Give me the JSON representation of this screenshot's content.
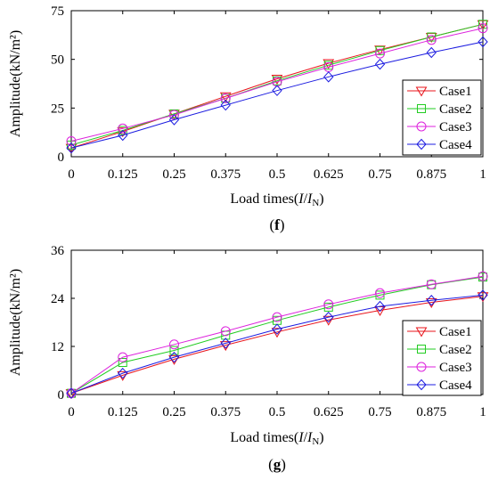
{
  "chart_data": [
    {
      "type": "line",
      "panel": "f",
      "xlabel_prefix": "Load times(",
      "xlabel_italic": "I",
      "xlabel_sep": "/",
      "xlabel_italic2": "I",
      "xlabel_sub": "N",
      "xlabel_suffix": ")",
      "ylabel": "Amplitude(kN/m²)",
      "x": [
        0,
        0.125,
        0.25,
        0.375,
        0.5,
        0.625,
        0.75,
        0.875,
        1
      ],
      "x_ticks": [
        "0",
        "0.125",
        "0.25",
        "0.375",
        "0.5",
        "0.625",
        "0.75",
        "0.875",
        "1"
      ],
      "ylim": [
        0,
        75
      ],
      "y_ticks": [
        0,
        25,
        50,
        75
      ],
      "legend_position": "bottom-right",
      "series": [
        {
          "name": "Case1",
          "color": "#e8141b",
          "marker": "triangle-down",
          "values": [
            4.5,
            13,
            22,
            31,
            40,
            48,
            55,
            61.5,
            68
          ]
        },
        {
          "name": "Case2",
          "color": "#22cc22",
          "marker": "square",
          "values": [
            6,
            13.5,
            22,
            30,
            39,
            47,
            54.5,
            61.5,
            68
          ]
        },
        {
          "name": "Case3",
          "color": "#dd22dd",
          "marker": "circle",
          "values": [
            8,
            14.5,
            21.5,
            30,
            38.5,
            46,
            53,
            60,
            66
          ]
        },
        {
          "name": "Case4",
          "color": "#1c1ce0",
          "marker": "diamond",
          "values": [
            4.5,
            11,
            19,
            26.5,
            34,
            41,
            47.5,
            53.5,
            59
          ]
        }
      ]
    },
    {
      "type": "line",
      "panel": "g",
      "xlabel_prefix": "Load times(",
      "xlabel_italic": "I",
      "xlabel_sep": "/",
      "xlabel_italic2": "I",
      "xlabel_sub": "N",
      "xlabel_suffix": ")",
      "ylabel": "Amplitude(kN/m²)",
      "x": [
        0,
        0.125,
        0.25,
        0.375,
        0.5,
        0.625,
        0.75,
        0.875,
        1
      ],
      "x_ticks": [
        "0",
        "0.125",
        "0.25",
        "0.375",
        "0.5",
        "0.625",
        "0.75",
        "0.875",
        "1"
      ],
      "ylim": [
        0,
        36
      ],
      "y_ticks": [
        0,
        12,
        24,
        36
      ],
      "legend_position": "bottom-right",
      "series": [
        {
          "name": "Case1",
          "color": "#e8141b",
          "marker": "triangle-down",
          "values": [
            0.3,
            4.8,
            8.8,
            12.3,
            15.6,
            18.6,
            21.0,
            23.0,
            24.5
          ]
        },
        {
          "name": "Case2",
          "color": "#22cc22",
          "marker": "square",
          "values": [
            0.3,
            8.0,
            11.0,
            14.8,
            18.5,
            21.8,
            24.8,
            27.4,
            29.3
          ]
        },
        {
          "name": "Case3",
          "color": "#dd22dd",
          "marker": "circle",
          "values": [
            0.3,
            9.3,
            12.5,
            15.8,
            19.3,
            22.5,
            25.3,
            27.5,
            29.5
          ]
        },
        {
          "name": "Case4",
          "color": "#1c1ce0",
          "marker": "diamond",
          "values": [
            0.3,
            5.3,
            9.3,
            12.8,
            16.3,
            19.3,
            22.0,
            23.5,
            24.8
          ]
        }
      ]
    }
  ]
}
